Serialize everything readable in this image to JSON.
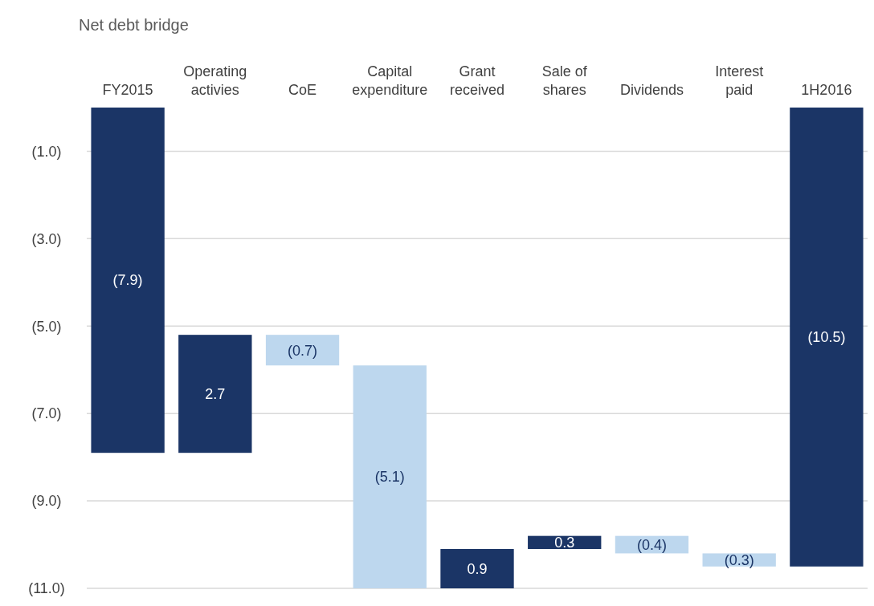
{
  "chart_data": {
    "type": "bar",
    "title": "Net debt bridge",
    "categories": [
      "FY2015",
      "Operating\nactivies",
      "CoE",
      "Capital\nexpenditure",
      "Grant\nreceived",
      "Sale of\nshares",
      "Dividends",
      "Interest\npaid",
      "1H2016"
    ],
    "base": [
      0,
      -7.9,
      -5.2,
      -5.9,
      -11.0,
      -10.1,
      -9.8,
      -10.2,
      0
    ],
    "values": [
      -7.9,
      2.7,
      -0.7,
      -5.1,
      0.9,
      0.3,
      -0.4,
      -0.3,
      -10.5
    ],
    "colors": [
      "#1b3566",
      "#1b3566",
      "#bdd7ee",
      "#bdd7ee",
      "#1b3566",
      "#1b3566",
      "#bdd7ee",
      "#bdd7ee",
      "#1b3566"
    ],
    "value_labels": [
      "(7.9)",
      "2.7",
      "(0.7)",
      "(5.1)",
      "0.9",
      "0.3",
      "(0.4)",
      "(0.3)",
      "(10.5)"
    ],
    "ylim": [
      -11,
      0
    ],
    "yticks": [
      {
        "value": -1,
        "label": "(1.0)"
      },
      {
        "value": -3,
        "label": "(3.0)"
      },
      {
        "value": -5,
        "label": "(5.0)"
      },
      {
        "value": -7,
        "label": "(7.0)"
      },
      {
        "value": -9,
        "label": "(9.0)"
      },
      {
        "value": -11,
        "label": "(11.0)"
      }
    ],
    "grid": "y"
  }
}
